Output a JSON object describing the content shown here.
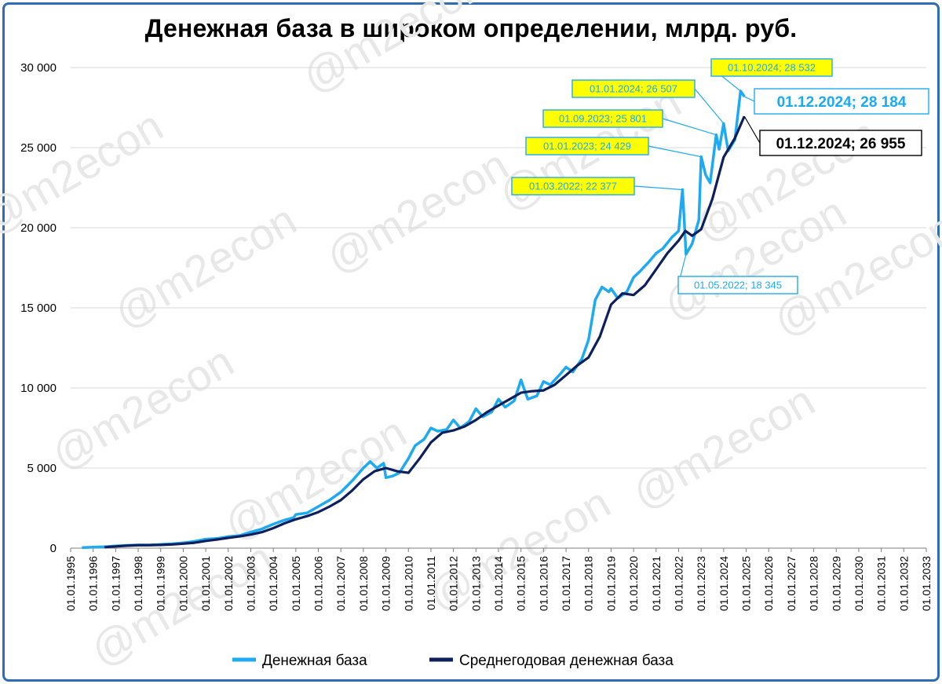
{
  "chart_data": {
    "type": "line",
    "title": "Денежная база в широком определении, млрд. руб.",
    "ylim": [
      0,
      30000
    ],
    "yticks": [
      0,
      5000,
      10000,
      15000,
      20000,
      25000,
      30000
    ],
    "ytick_labels": [
      "0",
      "5 000",
      "10 000",
      "15 000",
      "20 000",
      "25 000",
      "30 000"
    ],
    "xlim": [
      1995,
      2033
    ],
    "xtick_labels": [
      "01.01.1995",
      "01.01.1996",
      "01.01.1997",
      "01.01.1998",
      "01.01.1999",
      "01.01.2000",
      "01.01.2001",
      "01.01.2002",
      "01.01.2003",
      "01.01.2004",
      "01.01.2005",
      "01.01.2006",
      "01.01.2007",
      "01.01.2008",
      "01.01.2009",
      "01.01.2010",
      "01.01.2011",
      "01.01.2012",
      "01.01.2013",
      "01.01.2014",
      "01.01.2015",
      "01.01.2016",
      "01.01.2017",
      "01.01.2018",
      "01.01.2019",
      "01.01.2020",
      "01.01.2021",
      "01.01.2022",
      "01.01.2023",
      "01.01.2024",
      "01.01.2025",
      "01.01.2026",
      "01.01.2027",
      "01.01.2028",
      "01.01.2029",
      "01.01.2030",
      "01.01.2031",
      "01.01.2032",
      "01.01.2033"
    ],
    "grid": true,
    "legend_position": "bottom",
    "series": [
      {
        "name": "Денежная база",
        "color": "#1eaaf1",
        "points": [
          [
            1995.5,
            30
          ],
          [
            1996.0,
            60
          ],
          [
            1996.5,
            90
          ],
          [
            1997.0,
            130
          ],
          [
            1997.5,
            170
          ],
          [
            1998.0,
            200
          ],
          [
            1998.5,
            190
          ],
          [
            1999.0,
            230
          ],
          [
            1999.5,
            270
          ],
          [
            2000.0,
            330
          ],
          [
            2000.5,
            420
          ],
          [
            2001.0,
            560
          ],
          [
            2001.5,
            600
          ],
          [
            2002.0,
            720
          ],
          [
            2002.5,
            780
          ],
          [
            2003.0,
            1000
          ],
          [
            2003.5,
            1200
          ],
          [
            2004.0,
            1500
          ],
          [
            2004.5,
            1750
          ],
          [
            2004.9,
            1900
          ],
          [
            2005.0,
            2100
          ],
          [
            2005.5,
            2200
          ],
          [
            2006.0,
            2600
          ],
          [
            2006.5,
            3000
          ],
          [
            2007.0,
            3500
          ],
          [
            2007.5,
            4200
          ],
          [
            2008.0,
            5000
          ],
          [
            2008.3,
            5400
          ],
          [
            2008.6,
            5000
          ],
          [
            2008.9,
            5300
          ],
          [
            2009.0,
            4400
          ],
          [
            2009.3,
            4500
          ],
          [
            2009.6,
            4700
          ],
          [
            2010.0,
            5600
          ],
          [
            2010.3,
            6400
          ],
          [
            2010.7,
            6800
          ],
          [
            2011.0,
            7500
          ],
          [
            2011.3,
            7300
          ],
          [
            2011.7,
            7400
          ],
          [
            2012.0,
            8000
          ],
          [
            2012.3,
            7500
          ],
          [
            2012.7,
            7900
          ],
          [
            2013.0,
            8700
          ],
          [
            2013.3,
            8200
          ],
          [
            2013.7,
            8500
          ],
          [
            2014.0,
            9300
          ],
          [
            2014.3,
            8800
          ],
          [
            2014.7,
            9200
          ],
          [
            2015.0,
            10500
          ],
          [
            2015.3,
            9300
          ],
          [
            2015.7,
            9500
          ],
          [
            2016.0,
            10400
          ],
          [
            2016.3,
            10200
          ],
          [
            2016.7,
            10800
          ],
          [
            2017.0,
            11300
          ],
          [
            2017.3,
            11000
          ],
          [
            2017.7,
            11800
          ],
          [
            2018.0,
            13000
          ],
          [
            2018.3,
            15500
          ],
          [
            2018.6,
            16300
          ],
          [
            2018.9,
            16000
          ],
          [
            2019.0,
            16200
          ],
          [
            2019.3,
            15600
          ],
          [
            2019.7,
            16000
          ],
          [
            2020.0,
            16900
          ],
          [
            2020.3,
            17300
          ],
          [
            2020.7,
            17900
          ],
          [
            2021.0,
            18400
          ],
          [
            2021.3,
            18700
          ],
          [
            2021.7,
            19400
          ],
          [
            2022.0,
            19800
          ],
          [
            2022.17,
            22377
          ],
          [
            2022.25,
            20500
          ],
          [
            2022.33,
            18345
          ],
          [
            2022.6,
            19000
          ],
          [
            2022.9,
            20500
          ],
          [
            2023.0,
            24429
          ],
          [
            2023.2,
            23300
          ],
          [
            2023.4,
            22800
          ],
          [
            2023.67,
            25801
          ],
          [
            2023.8,
            24900
          ],
          [
            2024.0,
            26507
          ],
          [
            2024.2,
            24800
          ],
          [
            2024.5,
            25500
          ],
          [
            2024.75,
            28532
          ],
          [
            2024.92,
            28184
          ]
        ]
      },
      {
        "name": "Среднегодовая денежная база",
        "color": "#0d1f5c",
        "points": [
          [
            1996.5,
            60
          ],
          [
            1997.0,
            110
          ],
          [
            1997.5,
            150
          ],
          [
            1998.0,
            180
          ],
          [
            1998.5,
            190
          ],
          [
            1999.0,
            200
          ],
          [
            1999.5,
            230
          ],
          [
            2000.0,
            280
          ],
          [
            2000.5,
            340
          ],
          [
            2001.0,
            450
          ],
          [
            2001.5,
            540
          ],
          [
            2002.0,
            640
          ],
          [
            2002.5,
            730
          ],
          [
            2003.0,
            850
          ],
          [
            2003.5,
            1000
          ],
          [
            2004.0,
            1250
          ],
          [
            2004.5,
            1550
          ],
          [
            2005.0,
            1800
          ],
          [
            2005.5,
            2000
          ],
          [
            2006.0,
            2250
          ],
          [
            2006.5,
            2600
          ],
          [
            2007.0,
            3000
          ],
          [
            2007.5,
            3600
          ],
          [
            2008.0,
            4300
          ],
          [
            2008.5,
            4800
          ],
          [
            2009.0,
            5000
          ],
          [
            2009.5,
            4800
          ],
          [
            2010.0,
            4700
          ],
          [
            2010.5,
            5600
          ],
          [
            2011.0,
            6600
          ],
          [
            2011.5,
            7200
          ],
          [
            2012.0,
            7350
          ],
          [
            2012.5,
            7600
          ],
          [
            2013.0,
            8000
          ],
          [
            2013.5,
            8500
          ],
          [
            2014.0,
            8900
          ],
          [
            2014.5,
            9300
          ],
          [
            2015.0,
            9700
          ],
          [
            2015.5,
            9800
          ],
          [
            2016.0,
            9850
          ],
          [
            2016.5,
            10200
          ],
          [
            2017.0,
            10800
          ],
          [
            2017.5,
            11400
          ],
          [
            2018.0,
            11900
          ],
          [
            2018.5,
            13200
          ],
          [
            2019.0,
            15200
          ],
          [
            2019.5,
            15900
          ],
          [
            2020.0,
            15800
          ],
          [
            2020.5,
            16400
          ],
          [
            2021.0,
            17400
          ],
          [
            2021.5,
            18400
          ],
          [
            2022.0,
            19200
          ],
          [
            2022.3,
            19800
          ],
          [
            2022.6,
            19500
          ],
          [
            2023.0,
            19900
          ],
          [
            2023.5,
            21800
          ],
          [
            2024.0,
            24400
          ],
          [
            2024.5,
            25600
          ],
          [
            2024.92,
            26955
          ]
        ]
      }
    ],
    "annotations": [
      {
        "text": "01.03.2022;  22 377",
        "style": "yellow"
      },
      {
        "text": "01.05.2022;  18 345",
        "style": "plain-blue"
      },
      {
        "text": "01.01.2023;  24 429",
        "style": "yellow"
      },
      {
        "text": "01.09.2023;  25 801",
        "style": "yellow"
      },
      {
        "text": "01.01.2024;  26 507",
        "style": "yellow"
      },
      {
        "text": "01.10.2024;  28 532",
        "style": "yellow"
      },
      {
        "text": "01.12.2024;  28 184",
        "style": "big-blue"
      },
      {
        "text": "01.12.2024;  26 955",
        "style": "big-dark"
      }
    ],
    "watermark": "@m2econ"
  }
}
